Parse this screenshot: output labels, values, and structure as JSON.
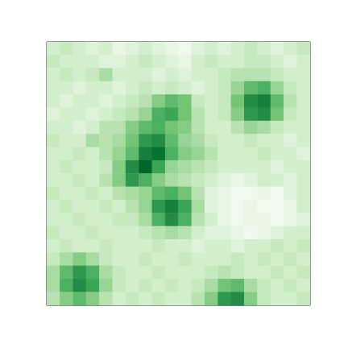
{
  "chart_data": {
    "type": "heatmap",
    "color": "Greens",
    "tick_labels": false,
    "clim": [
      0,
      1
    ],
    "cells": [
      [
        0.2,
        0.25,
        0.2,
        0.15,
        0.2,
        0.1,
        0.15,
        0.2,
        0.15,
        0.1,
        0.05,
        0.15,
        0.2,
        0.15,
        0.2,
        0.25,
        0.2,
        0.15,
        0.2,
        0.25
      ],
      [
        0.25,
        0.2,
        0.2,
        0.2,
        0.15,
        0.15,
        0.2,
        0.25,
        0.2,
        0.15,
        0.1,
        0.2,
        0.25,
        0.2,
        0.2,
        0.25,
        0.25,
        0.2,
        0.15,
        0.2
      ],
      [
        0.2,
        0.25,
        0.2,
        0.25,
        0.35,
        0.2,
        0.2,
        0.2,
        0.15,
        0.2,
        0.15,
        0.2,
        0.2,
        0.25,
        0.3,
        0.3,
        0.3,
        0.25,
        0.2,
        0.2
      ],
      [
        0.2,
        0.2,
        0.15,
        0.2,
        0.2,
        0.15,
        0.2,
        0.25,
        0.2,
        0.25,
        0.2,
        0.15,
        0.2,
        0.25,
        0.4,
        0.55,
        0.6,
        0.4,
        0.25,
        0.2
      ],
      [
        0.2,
        0.15,
        0.2,
        0.2,
        0.15,
        0.2,
        0.25,
        0.3,
        0.45,
        0.55,
        0.5,
        0.25,
        0.2,
        0.25,
        0.5,
        0.75,
        0.8,
        0.55,
        0.3,
        0.2
      ],
      [
        0.15,
        0.2,
        0.2,
        0.15,
        0.2,
        0.25,
        0.3,
        0.4,
        0.6,
        0.65,
        0.5,
        0.3,
        0.2,
        0.25,
        0.45,
        0.7,
        0.75,
        0.5,
        0.25,
        0.2
      ],
      [
        0.2,
        0.2,
        0.15,
        0.2,
        0.3,
        0.3,
        0.45,
        0.55,
        0.6,
        0.5,
        0.45,
        0.3,
        0.2,
        0.2,
        0.3,
        0.4,
        0.35,
        0.25,
        0.2,
        0.2
      ],
      [
        0.25,
        0.2,
        0.2,
        0.35,
        0.3,
        0.35,
        0.5,
        0.7,
        0.75,
        0.55,
        0.4,
        0.35,
        0.25,
        0.2,
        0.2,
        0.25,
        0.2,
        0.2,
        0.15,
        0.2
      ],
      [
        0.2,
        0.2,
        0.25,
        0.2,
        0.3,
        0.4,
        0.55,
        0.8,
        0.85,
        0.6,
        0.45,
        0.4,
        0.3,
        0.2,
        0.2,
        0.2,
        0.25,
        0.2,
        0.2,
        0.15
      ],
      [
        0.2,
        0.25,
        0.2,
        0.2,
        0.25,
        0.45,
        0.75,
        0.9,
        0.65,
        0.4,
        0.35,
        0.3,
        0.25,
        0.2,
        0.2,
        0.2,
        0.2,
        0.15,
        0.2,
        0.2
      ],
      [
        0.2,
        0.2,
        0.25,
        0.2,
        0.3,
        0.45,
        0.7,
        0.6,
        0.45,
        0.35,
        0.3,
        0.25,
        0.2,
        0.15,
        0.1,
        0.15,
        0.2,
        0.2,
        0.15,
        0.2
      ],
      [
        0.25,
        0.2,
        0.2,
        0.25,
        0.2,
        0.3,
        0.35,
        0.4,
        0.55,
        0.6,
        0.5,
        0.3,
        0.15,
        0.1,
        0.05,
        0.05,
        0.1,
        0.05,
        0.15,
        0.2
      ],
      [
        0.2,
        0.25,
        0.2,
        0.2,
        0.25,
        0.2,
        0.3,
        0.4,
        0.7,
        0.8,
        0.65,
        0.35,
        0.15,
        0.1,
        0.05,
        0.1,
        0.05,
        0.05,
        0.1,
        0.2
      ],
      [
        0.2,
        0.2,
        0.25,
        0.2,
        0.2,
        0.25,
        0.25,
        0.35,
        0.6,
        0.75,
        0.6,
        0.3,
        0.2,
        0.1,
        0.05,
        0.1,
        0.1,
        0.05,
        0.1,
        0.15
      ],
      [
        0.25,
        0.2,
        0.2,
        0.25,
        0.2,
        0.2,
        0.2,
        0.25,
        0.3,
        0.35,
        0.3,
        0.2,
        0.15,
        0.15,
        0.1,
        0.05,
        0.1,
        0.15,
        0.2,
        0.2
      ],
      [
        0.2,
        0.25,
        0.2,
        0.2,
        0.25,
        0.2,
        0.2,
        0.2,
        0.25,
        0.2,
        0.2,
        0.15,
        0.2,
        0.2,
        0.15,
        0.2,
        0.2,
        0.25,
        0.2,
        0.25
      ],
      [
        0.25,
        0.35,
        0.45,
        0.35,
        0.25,
        0.2,
        0.2,
        0.25,
        0.2,
        0.2,
        0.25,
        0.2,
        0.2,
        0.2,
        0.25,
        0.2,
        0.25,
        0.2,
        0.25,
        0.2
      ],
      [
        0.35,
        0.55,
        0.7,
        0.6,
        0.35,
        0.25,
        0.2,
        0.2,
        0.25,
        0.2,
        0.2,
        0.2,
        0.25,
        0.3,
        0.25,
        0.2,
        0.2,
        0.25,
        0.2,
        0.25
      ],
      [
        0.35,
        0.6,
        0.75,
        0.65,
        0.4,
        0.25,
        0.2,
        0.25,
        0.2,
        0.25,
        0.2,
        0.25,
        0.35,
        0.5,
        0.55,
        0.35,
        0.25,
        0.2,
        0.25,
        0.2
      ],
      [
        0.3,
        0.45,
        0.55,
        0.45,
        0.3,
        0.2,
        0.25,
        0.2,
        0.25,
        0.2,
        0.2,
        0.3,
        0.45,
        0.7,
        0.75,
        0.45,
        0.25,
        0.2,
        0.2,
        0.25
      ]
    ]
  }
}
